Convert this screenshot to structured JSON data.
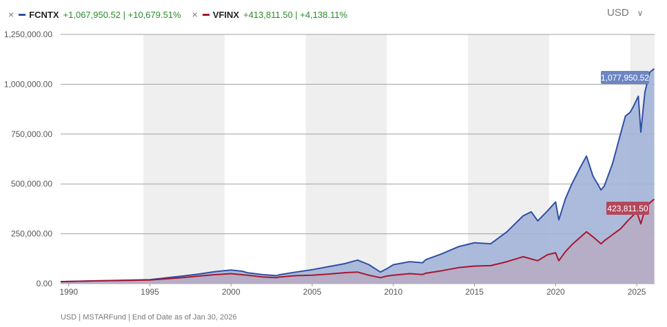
{
  "legend": {
    "items": [
      {
        "ticker": "FCNTX",
        "summary": "+1,067,950.52 | +10,679.51%",
        "color": "#2e4fa3"
      },
      {
        "ticker": "VFINX",
        "summary": "+413,811.50 | +4,138.11%",
        "color": "#a5172e"
      }
    ],
    "remove_icon": "×"
  },
  "currency": {
    "label": "USD",
    "chevron_icon": "chevron-down-icon"
  },
  "footer": {
    "text": "USD | MSTARFund | End of Date as of Jan 30, 2026"
  },
  "colors": {
    "fcntx_line": "#2e4fa3",
    "fcntx_area": "#a3b4d8",
    "vfinx_line": "#a5172e",
    "vfinx_area": "#b7acc4",
    "shade": "#efefef",
    "grid": "#a0a0a0"
  },
  "chart_data": {
    "type": "area",
    "y_ticks": [
      "1,250,000.00",
      "1,000,000.00",
      "750,000.00",
      "500,000.00",
      "250,000.00",
      "0.00"
    ],
    "x_ticks": [
      "1990",
      "1995",
      "2000",
      "2005",
      "2010",
      "2015",
      "2020",
      "2025"
    ],
    "ylim": [
      0,
      1250000
    ],
    "xlim": [
      1989.5,
      2026.1
    ],
    "grid": true,
    "shaded_periods": [
      [
        1994.6,
        1999.6
      ],
      [
        2004.6,
        2009.6
      ],
      [
        2014.6,
        2019.6
      ],
      [
        2024.6,
        2026.1
      ]
    ],
    "series": [
      {
        "name": "FCNTX",
        "end_label": "1,077,950.52",
        "points": [
          [
            1989.5,
            10000
          ],
          [
            1992,
            15000
          ],
          [
            1995,
            20000
          ],
          [
            1997,
            38000
          ],
          [
            1998,
            48000
          ],
          [
            1999,
            60000
          ],
          [
            2000,
            68000
          ],
          [
            2000.7,
            62000
          ],
          [
            2001,
            55000
          ],
          [
            2002,
            45000
          ],
          [
            2002.8,
            40000
          ],
          [
            2003,
            45000
          ],
          [
            2004,
            58000
          ],
          [
            2005,
            70000
          ],
          [
            2006,
            85000
          ],
          [
            2007,
            100000
          ],
          [
            2007.8,
            118000
          ],
          [
            2008.5,
            95000
          ],
          [
            2009.2,
            58000
          ],
          [
            2009.6,
            75000
          ],
          [
            2010,
            95000
          ],
          [
            2011,
            110000
          ],
          [
            2011.8,
            105000
          ],
          [
            2012,
            120000
          ],
          [
            2013,
            150000
          ],
          [
            2014,
            185000
          ],
          [
            2015,
            205000
          ],
          [
            2016,
            200000
          ],
          [
            2017,
            260000
          ],
          [
            2018,
            340000
          ],
          [
            2018.5,
            360000
          ],
          [
            2018.9,
            315000
          ],
          [
            2019.5,
            365000
          ],
          [
            2020,
            410000
          ],
          [
            2020.2,
            320000
          ],
          [
            2020.6,
            425000
          ],
          [
            2021,
            500000
          ],
          [
            2021.5,
            580000
          ],
          [
            2021.9,
            640000
          ],
          [
            2022.3,
            540000
          ],
          [
            2022.8,
            470000
          ],
          [
            2023,
            490000
          ],
          [
            2023.5,
            600000
          ],
          [
            2024,
            750000
          ],
          [
            2024.3,
            840000
          ],
          [
            2024.6,
            860000
          ],
          [
            2024.8,
            890000
          ],
          [
            2025.1,
            940000
          ],
          [
            2025.25,
            760000
          ],
          [
            2025.5,
            960000
          ],
          [
            2025.8,
            1060000
          ],
          [
            2026.08,
            1077950
          ]
        ]
      },
      {
        "name": "VFINX",
        "end_label": "423,811.50",
        "points": [
          [
            1989.5,
            10000
          ],
          [
            1992,
            14000
          ],
          [
            1995,
            18000
          ],
          [
            1997,
            30000
          ],
          [
            1998,
            38000
          ],
          [
            1999,
            45000
          ],
          [
            2000,
            50000
          ],
          [
            2001,
            42000
          ],
          [
            2002,
            33000
          ],
          [
            2002.8,
            30000
          ],
          [
            2003,
            33000
          ],
          [
            2004,
            40000
          ],
          [
            2005,
            42000
          ],
          [
            2006,
            48000
          ],
          [
            2007,
            55000
          ],
          [
            2007.8,
            58000
          ],
          [
            2008.5,
            42000
          ],
          [
            2009.2,
            30000
          ],
          [
            2009.6,
            38000
          ],
          [
            2010,
            42000
          ],
          [
            2011,
            50000
          ],
          [
            2011.8,
            46000
          ],
          [
            2012,
            52000
          ],
          [
            2013,
            65000
          ],
          [
            2014,
            80000
          ],
          [
            2015,
            88000
          ],
          [
            2016,
            90000
          ],
          [
            2017,
            110000
          ],
          [
            2018,
            135000
          ],
          [
            2018.9,
            115000
          ],
          [
            2019.5,
            145000
          ],
          [
            2020,
            155000
          ],
          [
            2020.2,
            115000
          ],
          [
            2020.6,
            160000
          ],
          [
            2021,
            195000
          ],
          [
            2021.9,
            260000
          ],
          [
            2022.3,
            235000
          ],
          [
            2022.8,
            200000
          ],
          [
            2023,
            215000
          ],
          [
            2023.5,
            245000
          ],
          [
            2024,
            275000
          ],
          [
            2024.5,
            320000
          ],
          [
            2025,
            360000
          ],
          [
            2025.25,
            300000
          ],
          [
            2025.5,
            370000
          ],
          [
            2025.8,
            405000
          ],
          [
            2026.08,
            423811
          ]
        ]
      }
    ]
  }
}
